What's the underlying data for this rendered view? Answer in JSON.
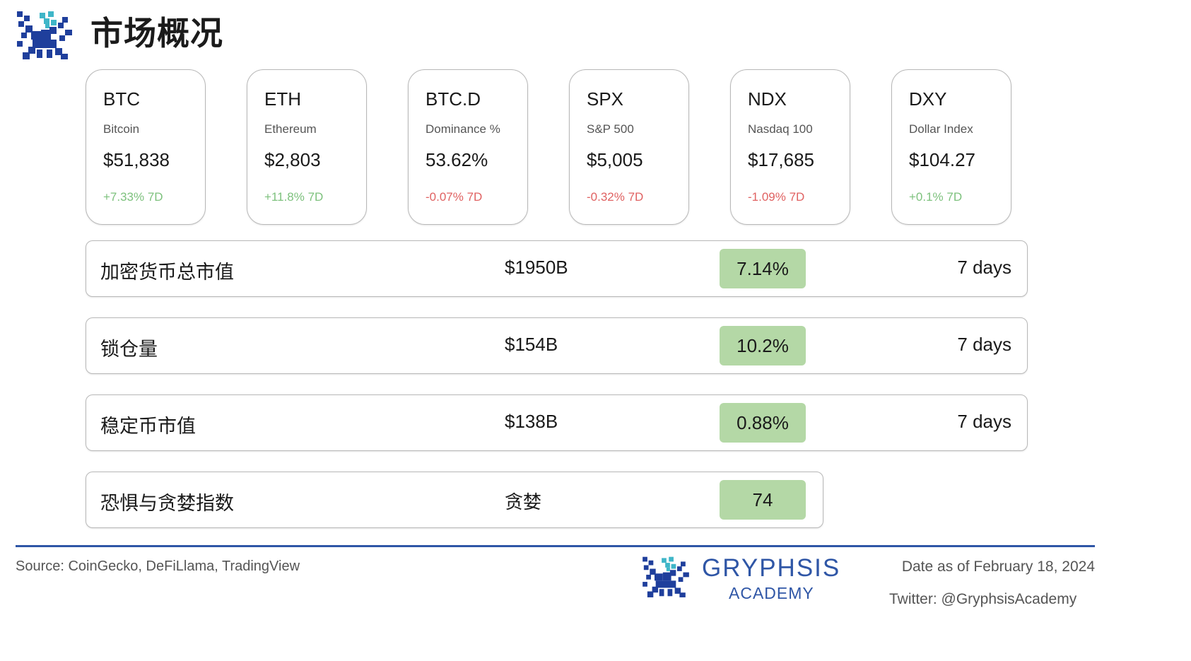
{
  "header": {
    "title": "市场概况"
  },
  "tickers": [
    {
      "symbol": "BTC",
      "name": "Bitcoin",
      "price": "$51,838",
      "change": "+7.33% 7D",
      "direction": "up"
    },
    {
      "symbol": "ETH",
      "name": "Ethereum",
      "price": "$2,803",
      "change": "+11.8% 7D",
      "direction": "up"
    },
    {
      "symbol": "BTC.D",
      "name": "Dominance %",
      "price": "53.62%",
      "change": "-0.07% 7D",
      "direction": "down"
    },
    {
      "symbol": "SPX",
      "name": "S&P 500",
      "price": "$5,005",
      "change": "-0.32% 7D",
      "direction": "down"
    },
    {
      "symbol": "NDX",
      "name": "Nasdaq 100",
      "price": "$17,685",
      "change": "-1.09% 7D",
      "direction": "down"
    },
    {
      "symbol": "DXY",
      "name": "Dollar Index",
      "price": "$104.27",
      "change": "+0.1% 7D",
      "direction": "up"
    }
  ],
  "metrics": [
    {
      "label": "加密货币总市值",
      "value": "$1950B",
      "badge": "7.14%",
      "period": "7 days"
    },
    {
      "label": "锁仓量",
      "value": "$154B",
      "badge": "10.2%",
      "period": "7 days"
    },
    {
      "label": "稳定币市值",
      "value": "$138B",
      "badge": "0.88%",
      "period": "7 days"
    },
    {
      "label": "恐惧与贪婪指数",
      "value": "贪婪",
      "badge": "74"
    }
  ],
  "colors": {
    "positive": "#7dc17d",
    "negative": "#e06262",
    "badge": "#b4d8a6",
    "brand": "#2f56a6",
    "logo_accent": "#3fb6c8"
  },
  "footer": {
    "source": "Source: CoinGecko, DeFiLlama, TradingView",
    "brand_name": "GRYPHSIS",
    "brand_sub": "ACADEMY",
    "date": "Date as of February 18, 2024",
    "twitter": "Twitter: @GryphsisAcademy"
  },
  "icons": {
    "header_logo": "gryphon-pixel-logo-icon",
    "footer_logo": "gryphon-pixel-logo-icon"
  }
}
